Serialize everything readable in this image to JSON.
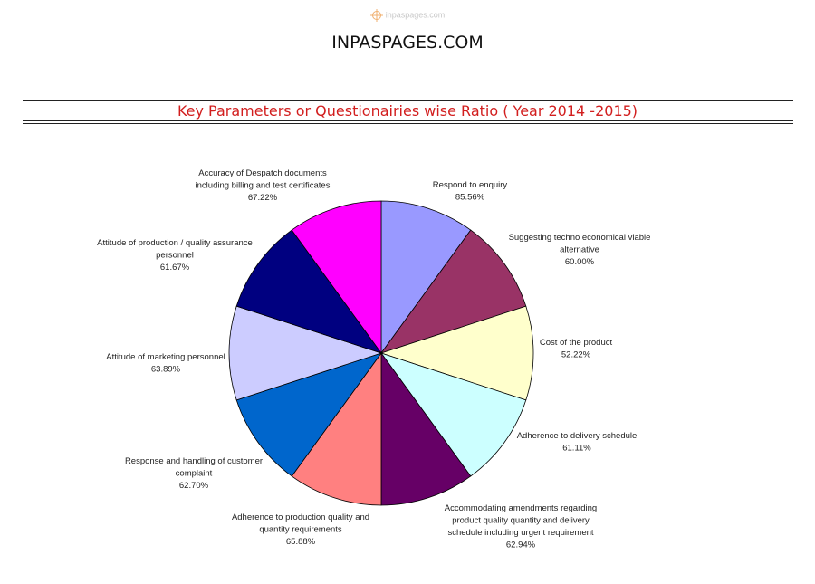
{
  "header": {
    "watermark": "inpaspages.com",
    "site_title": "INPASPAGES.COM"
  },
  "chart_data": {
    "type": "pie",
    "title": "Key Parameters or Questionairies wise Ratio ( Year 2014 -2015)",
    "slices": [
      {
        "label": [
          "Respond to enquiry"
        ],
        "value_label": "85.56%",
        "value": 85.56,
        "color": "#9999ff"
      },
      {
        "label": [
          "Suggesting techno economical viable",
          "alternative"
        ],
        "value_label": "60.00%",
        "value": 60.0,
        "color": "#993366"
      },
      {
        "label": [
          "Cost of the product"
        ],
        "value_label": "52.22%",
        "value": 52.22,
        "color": "#ffffcc"
      },
      {
        "label": [
          "Adherence to delivery schedule"
        ],
        "value_label": "61.11%",
        "value": 61.11,
        "color": "#ccffff"
      },
      {
        "label": [
          "Accommodating amendments regarding",
          "product quality quantity and delivery",
          "schedule including urgent requirement"
        ],
        "value_label": "62.94%",
        "value": 62.94,
        "color": "#660066"
      },
      {
        "label": [
          "Adherence to production quality and",
          "quantity requirements"
        ],
        "value_label": "65.88%",
        "value": 65.88,
        "color": "#ff8080"
      },
      {
        "label": [
          "Response and handling of customer",
          "complaint"
        ],
        "value_label": "62.70%",
        "value": 62.7,
        "color": "#0066cc"
      },
      {
        "label": [
          "Attitude of marketing personnel"
        ],
        "value_label": "63.89%",
        "value": 63.89,
        "color": "#ccccff"
      },
      {
        "label": [
          "Attitude of production / quality assurance",
          "personnel"
        ],
        "value_label": "61.67%",
        "value": 61.67,
        "color": "#000080"
      },
      {
        "label": [
          "Accuracy of Despatch documents",
          "including billing and test certificates"
        ],
        "value_label": "67.22%",
        "value": 67.22,
        "color": "#ff00ff"
      }
    ]
  }
}
